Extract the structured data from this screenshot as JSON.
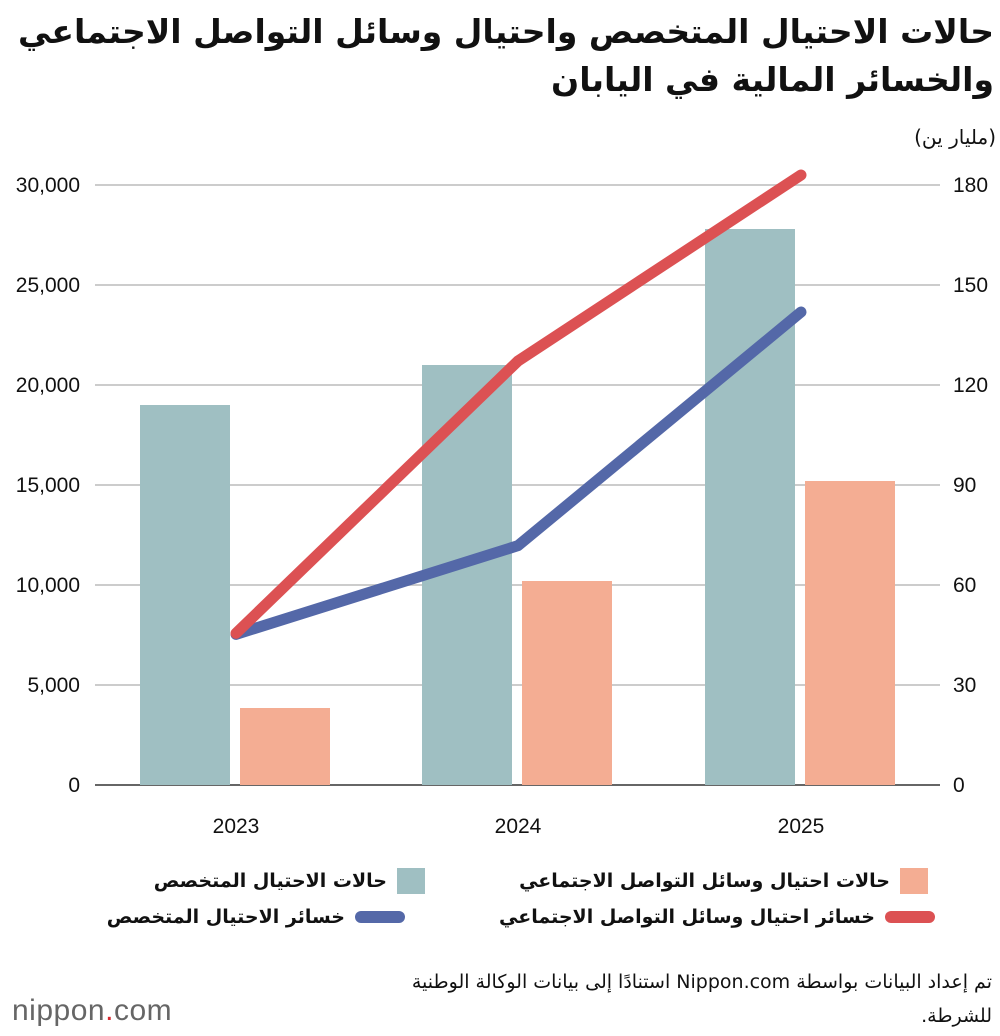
{
  "chart_data": {
    "type": "bar+line",
    "title": "حالات الاحتيال المتخصص واحتيال وسائل التواصل الاجتماعي والخسائر المالية في اليابان",
    "right_axis_unit": "(مليار ين)",
    "categories": [
      "2023",
      "2024",
      "2025"
    ],
    "left_axis": {
      "ylim": [
        0,
        30000
      ],
      "ticks": [
        "0",
        "5,000",
        "10,000",
        "15,000",
        "20,000",
        "25,000",
        "30,000"
      ],
      "tick_values": [
        0,
        5000,
        10000,
        15000,
        20000,
        25000,
        30000
      ]
    },
    "right_axis": {
      "ylim": [
        0,
        180
      ],
      "ticks": [
        "0",
        "30",
        "60",
        "90",
        "120",
        "150",
        "180"
      ],
      "tick_values": [
        0,
        30,
        60,
        90,
        120,
        150,
        180
      ]
    },
    "grid": true,
    "legend_placement": "bottom",
    "series": [
      {
        "name": "حالات الاحتيال المتخصص",
        "type": "bar",
        "axis": "left",
        "color": "#9fbfc2",
        "values": [
          19000,
          21000,
          27800
        ]
      },
      {
        "name": "حالات احتيال وسائل التواصل الاجتماعي",
        "type": "bar",
        "axis": "left",
        "color": "#f4ad93",
        "values": [
          3850,
          10200,
          15200
        ]
      },
      {
        "name": "خسائر الاحتيال المتخصص",
        "type": "line",
        "axis": "right",
        "color": "#5468a8",
        "values": [
          45.2,
          71.8,
          141.9
        ]
      },
      {
        "name": "خسائر احتيال وسائل التواصل الاجتماعي",
        "type": "line",
        "axis": "right",
        "color": "#dc5153",
        "values": [
          45.5,
          127.2,
          183
        ]
      }
    ]
  },
  "source": "تم إعداد البيانات بواسطة Nippon.com استنادًا إلى بيانات الوكالة الوطنية للشرطة.",
  "logo": {
    "name": "nippon",
    "dot": ".",
    "suffix": "com"
  }
}
